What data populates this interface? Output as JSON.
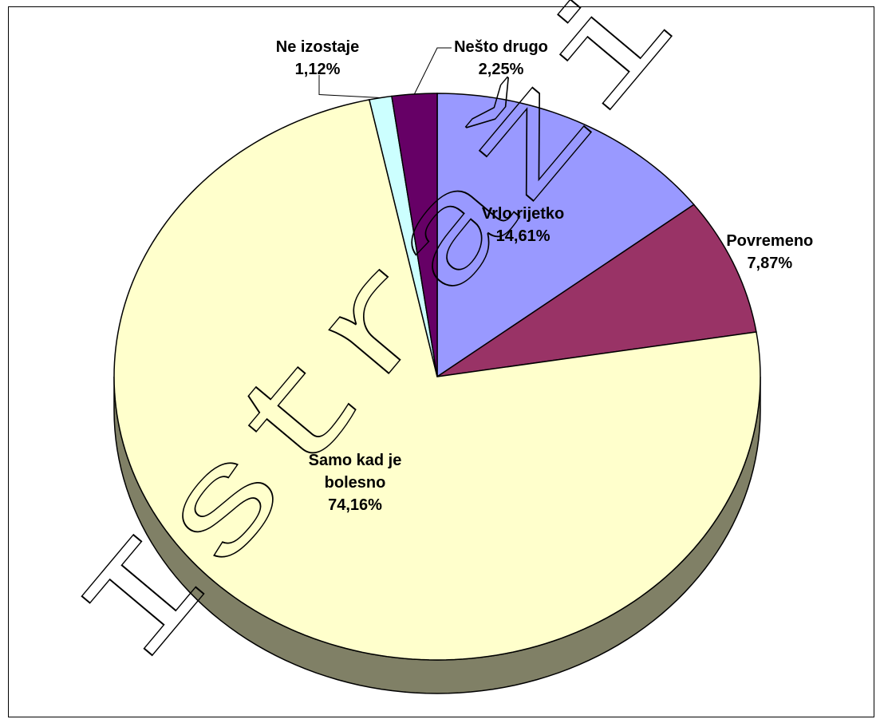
{
  "chart_data": {
    "type": "pie",
    "three_d": true,
    "title": "",
    "slices": [
      {
        "label": "Vrlo rijetko",
        "value": 14.61,
        "value_text": "14,61%",
        "color": "#9999FF"
      },
      {
        "label": "Povremeno",
        "value": 7.87,
        "value_text": "7,87%",
        "color": "#993366"
      },
      {
        "label": "Samo kad je bolesno",
        "value": 74.16,
        "value_text": "74,16%",
        "color": "#FFFFCC"
      },
      {
        "label": "Ne izostaje",
        "value": 1.12,
        "value_text": "1,12%",
        "color": "#CCFFFF"
      },
      {
        "label": "Nešto drugo",
        "value": 2.25,
        "value_text": "2,25%",
        "color": "#660066"
      }
    ],
    "data_labels": [
      {
        "lines": [
          "Vrlo rijetko"
        ],
        "value_text": "14,61%"
      },
      {
        "lines": [
          "Povremeno"
        ],
        "value_text": "7,87%"
      },
      {
        "lines": [
          "Samo kad je",
          "bolesno"
        ],
        "value_text": "74,16%"
      },
      {
        "lines": [
          "Ne izostaje"
        ],
        "value_text": "1,12%"
      },
      {
        "lines": [
          "Nešto drugo"
        ],
        "value_text": "2,25%"
      }
    ],
    "legend": "none"
  },
  "watermark": {
    "text": "Istraživanj"
  }
}
